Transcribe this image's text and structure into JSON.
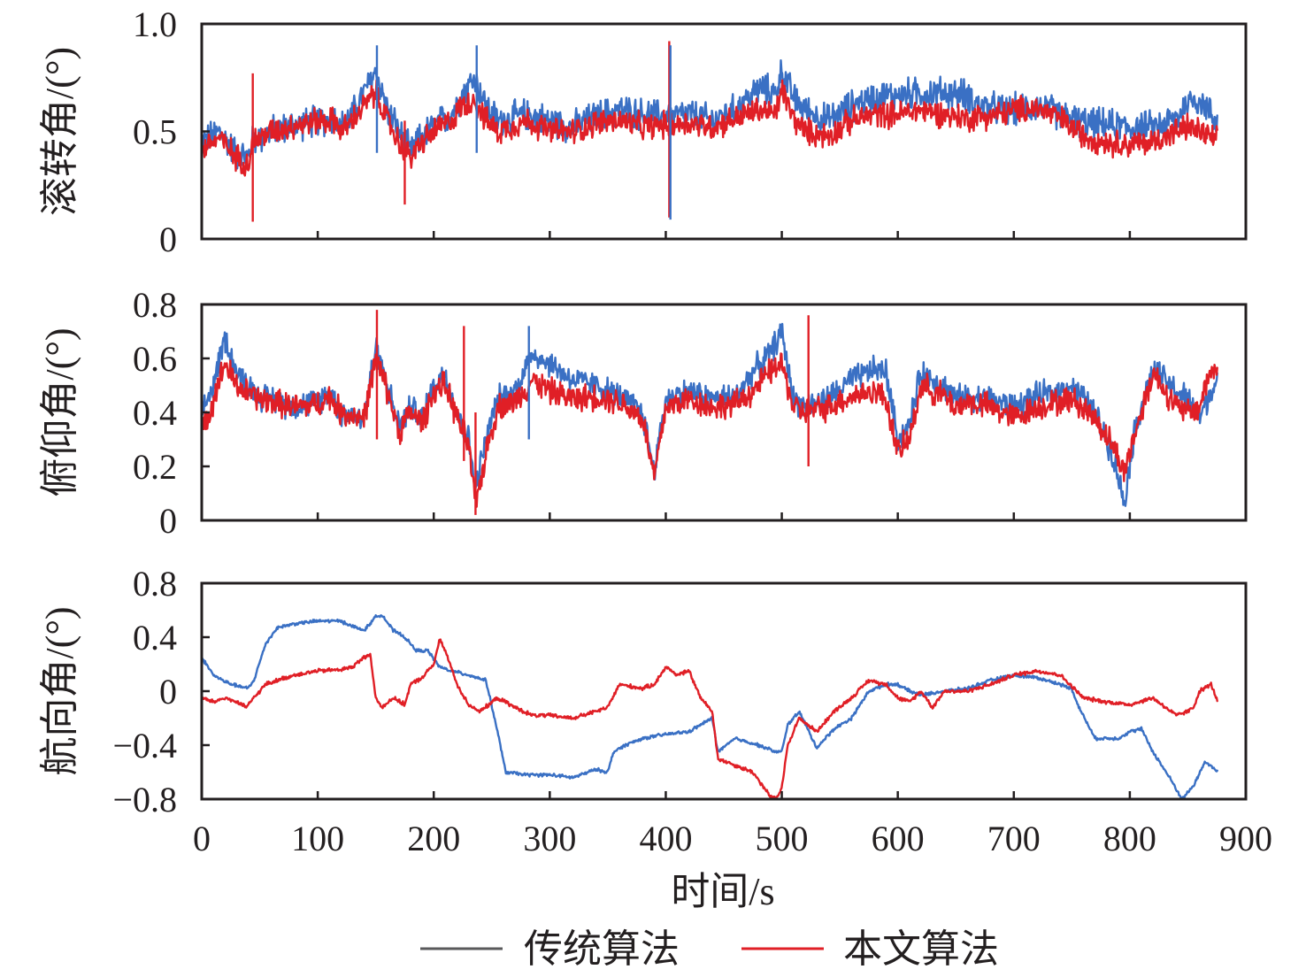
{
  "colors": {
    "traditional": "#3a70c4",
    "traditional_legend": "#59595b",
    "proposed": "#e01f26"
  },
  "legend": {
    "traditional_label": "传统算法",
    "proposed_label": "本文算法"
  },
  "chart_data": [
    {
      "type": "line",
      "ylabel": "滚转角/(°)",
      "xlim": [
        0,
        900
      ],
      "ylim": [
        0,
        1.0
      ],
      "x_ticks": [
        0,
        100,
        200,
        300,
        400,
        500,
        600,
        700,
        800,
        900
      ],
      "y_ticks": [
        "0",
        "0.5",
        "1.0"
      ],
      "y_tick_values": [
        0,
        0.5,
        1.0
      ],
      "noise": [
        0.06,
        0.05
      ],
      "series": [
        {
          "name": "传统算法",
          "x": [
            0,
            15,
            30,
            40,
            44,
            50,
            60,
            80,
            100,
            115,
            120,
            130,
            140,
            150,
            160,
            170,
            180,
            190,
            200,
            215,
            225,
            235,
            245,
            255,
            265,
            280,
            300,
            320,
            340,
            360,
            380,
            400,
            420,
            440,
            460,
            480,
            495,
            500,
            510,
            520,
            540,
            560,
            580,
            600,
            620,
            640,
            660,
            670,
            690,
            700,
            720,
            740,
            760,
            780,
            800,
            820,
            840,
            850,
            860,
            870,
            876
          ],
          "y": [
            0.45,
            0.5,
            0.4,
            0.38,
            0.46,
            0.47,
            0.5,
            0.53,
            0.55,
            0.56,
            0.52,
            0.58,
            0.68,
            0.78,
            0.6,
            0.5,
            0.4,
            0.48,
            0.52,
            0.58,
            0.68,
            0.75,
            0.62,
            0.55,
            0.56,
            0.58,
            0.55,
            0.52,
            0.57,
            0.6,
            0.58,
            0.57,
            0.58,
            0.55,
            0.6,
            0.7,
            0.68,
            0.78,
            0.66,
            0.6,
            0.55,
            0.62,
            0.66,
            0.67,
            0.68,
            0.68,
            0.67,
            0.62,
            0.6,
            0.6,
            0.62,
            0.58,
            0.54,
            0.53,
            0.52,
            0.52,
            0.56,
            0.64,
            0.65,
            0.58,
            0.55
          ]
        },
        {
          "name": "本文算法",
          "x": [
            0,
            15,
            30,
            40,
            44,
            50,
            60,
            80,
            100,
            115,
            120,
            130,
            140,
            150,
            160,
            170,
            180,
            190,
            200,
            215,
            225,
            235,
            245,
            255,
            265,
            280,
            300,
            320,
            340,
            360,
            380,
            400,
            420,
            440,
            460,
            480,
            495,
            500,
            510,
            520,
            540,
            560,
            580,
            600,
            620,
            640,
            660,
            670,
            690,
            700,
            720,
            740,
            760,
            780,
            800,
            820,
            840,
            850,
            860,
            870,
            876
          ],
          "y": [
            0.42,
            0.47,
            0.38,
            0.35,
            0.45,
            0.47,
            0.5,
            0.53,
            0.55,
            0.55,
            0.5,
            0.55,
            0.62,
            0.68,
            0.55,
            0.45,
            0.38,
            0.45,
            0.5,
            0.55,
            0.62,
            0.65,
            0.55,
            0.5,
            0.52,
            0.55,
            0.5,
            0.5,
            0.54,
            0.55,
            0.52,
            0.53,
            0.54,
            0.52,
            0.56,
            0.6,
            0.58,
            0.7,
            0.56,
            0.5,
            0.48,
            0.55,
            0.58,
            0.58,
            0.6,
            0.58,
            0.56,
            0.57,
            0.58,
            0.6,
            0.61,
            0.56,
            0.48,
            0.45,
            0.44,
            0.45,
            0.5,
            0.52,
            0.5,
            0.47,
            0.45
          ]
        }
      ],
      "spikes": [
        {
          "x": 44,
          "y": [
            0.08,
            0.77
          ],
          "series": 1
        },
        {
          "x": 403,
          "y": [
            0.1,
            0.92
          ],
          "series": 1
        },
        {
          "x": 404,
          "y": [
            0.09,
            0.9
          ],
          "series": 0
        },
        {
          "x": 151,
          "y": [
            0.4,
            0.9
          ],
          "series": 0
        },
        {
          "x": 237,
          "y": [
            0.4,
            0.9
          ],
          "series": 0
        },
        {
          "x": 175,
          "y": [
            0.16,
            0.55
          ],
          "series": 1
        }
      ]
    },
    {
      "type": "line",
      "ylabel": "俯仰角/(°)",
      "xlim": [
        0,
        900
      ],
      "ylim": [
        0,
        0.8
      ],
      "x_ticks": [
        0,
        100,
        200,
        300,
        400,
        500,
        600,
        700,
        800,
        900
      ],
      "y_ticks": [
        "0",
        "0.2",
        "0.4",
        "0.6",
        "0.8"
      ],
      "y_tick_values": [
        0,
        0.2,
        0.4,
        0.6,
        0.8
      ],
      "noise": [
        0.04,
        0.04
      ],
      "series": [
        {
          "name": "传统算法",
          "x": [
            0,
            10,
            20,
            30,
            40,
            50,
            60,
            80,
            100,
            110,
            120,
            140,
            150,
            160,
            170,
            180,
            190,
            200,
            210,
            220,
            230,
            236,
            245,
            255,
            270,
            285,
            300,
            320,
            340,
            360,
            380,
            390,
            400,
            420,
            440,
            460,
            475,
            490,
            500,
            510,
            520,
            540,
            560,
            580,
            590,
            600,
            610,
            620,
            640,
            650,
            660,
            680,
            700,
            720,
            740,
            750,
            770,
            785,
            795,
            805,
            820,
            840,
            850,
            860,
            870,
            876
          ],
          "y": [
            0.4,
            0.5,
            0.68,
            0.55,
            0.5,
            0.46,
            0.45,
            0.42,
            0.44,
            0.48,
            0.4,
            0.38,
            0.65,
            0.5,
            0.35,
            0.42,
            0.38,
            0.5,
            0.55,
            0.4,
            0.3,
            0.12,
            0.3,
            0.45,
            0.48,
            0.62,
            0.58,
            0.52,
            0.5,
            0.46,
            0.4,
            0.18,
            0.45,
            0.48,
            0.45,
            0.46,
            0.55,
            0.62,
            0.7,
            0.45,
            0.42,
            0.45,
            0.52,
            0.56,
            0.55,
            0.3,
            0.35,
            0.55,
            0.5,
            0.45,
            0.46,
            0.45,
            0.42,
            0.46,
            0.48,
            0.5,
            0.4,
            0.25,
            0.07,
            0.35,
            0.56,
            0.48,
            0.45,
            0.38,
            0.48,
            0.52
          ]
        },
        {
          "name": "本文算法",
          "x": [
            0,
            10,
            20,
            30,
            40,
            50,
            60,
            80,
            100,
            110,
            120,
            140,
            150,
            160,
            170,
            180,
            190,
            200,
            210,
            220,
            230,
            236,
            245,
            255,
            270,
            285,
            300,
            320,
            340,
            360,
            380,
            390,
            400,
            420,
            440,
            460,
            475,
            490,
            500,
            510,
            520,
            540,
            560,
            580,
            590,
            600,
            610,
            620,
            640,
            650,
            660,
            680,
            700,
            720,
            740,
            750,
            770,
            785,
            795,
            805,
            820,
            840,
            850,
            860,
            870,
            876
          ],
          "y": [
            0.32,
            0.45,
            0.58,
            0.5,
            0.47,
            0.45,
            0.44,
            0.42,
            0.43,
            0.46,
            0.4,
            0.38,
            0.6,
            0.48,
            0.33,
            0.4,
            0.36,
            0.48,
            0.5,
            0.38,
            0.28,
            0.05,
            0.25,
            0.42,
            0.44,
            0.52,
            0.48,
            0.45,
            0.46,
            0.44,
            0.38,
            0.16,
            0.42,
            0.45,
            0.42,
            0.43,
            0.48,
            0.55,
            0.58,
            0.42,
            0.4,
            0.42,
            0.46,
            0.48,
            0.45,
            0.25,
            0.3,
            0.5,
            0.46,
            0.42,
            0.44,
            0.42,
            0.38,
            0.42,
            0.44,
            0.45,
            0.38,
            0.28,
            0.18,
            0.33,
            0.55,
            0.42,
            0.4,
            0.42,
            0.56,
            0.55
          ]
        }
      ],
      "spikes": [
        {
          "x": 151,
          "y": [
            0.3,
            0.78
          ],
          "series": 1
        },
        {
          "x": 523,
          "y": [
            0.2,
            0.76
          ],
          "series": 1
        },
        {
          "x": 226,
          "y": [
            0.22,
            0.72
          ],
          "series": 1
        },
        {
          "x": 282,
          "y": [
            0.3,
            0.72
          ],
          "series": 0
        },
        {
          "x": 236,
          "y": [
            0.02,
            0.4
          ],
          "series": 1
        }
      ]
    },
    {
      "type": "line",
      "ylabel": "航向角/(°)",
      "xlim": [
        0,
        900
      ],
      "ylim": [
        -0.8,
        0.8
      ],
      "x_ticks": [
        0,
        100,
        200,
        300,
        400,
        500,
        600,
        700,
        800,
        900
      ],
      "x_tick_labels": [
        "0",
        "100",
        "200",
        "300",
        "400",
        "500",
        "600",
        "700",
        "800",
        "900"
      ],
      "xlabel": "时间/s",
      "y_ticks": [
        "−0.8",
        "−0.4",
        "0",
        "0.4",
        "0.8"
      ],
      "y_tick_values": [
        -0.8,
        -0.4,
        0,
        0.4,
        0.8
      ],
      "noise": [
        0.01,
        0.012
      ],
      "series": [
        {
          "name": "传统算法",
          "x": [
            0,
            10,
            20,
            30,
            40,
            45,
            55,
            65,
            80,
            100,
            120,
            130,
            140,
            150,
            155,
            165,
            175,
            185,
            195,
            205,
            215,
            230,
            245,
            255,
            262,
            280,
            300,
            320,
            340,
            350,
            355,
            365,
            380,
            400,
            420,
            440,
            445,
            460,
            480,
            495,
            500,
            505,
            515,
            530,
            545,
            560,
            575,
            590,
            600,
            610,
            620,
            640,
            660,
            680,
            700,
            720,
            740,
            750,
            755,
            770,
            790,
            800,
            810,
            820,
            835,
            845,
            855,
            865,
            876
          ],
          "y": [
            0.25,
            0.12,
            0.07,
            0.04,
            0.02,
            0.08,
            0.35,
            0.47,
            0.5,
            0.52,
            0.52,
            0.48,
            0.45,
            0.55,
            0.57,
            0.45,
            0.4,
            0.3,
            0.3,
            0.18,
            0.15,
            0.12,
            0.08,
            -0.3,
            -0.6,
            -0.62,
            -0.62,
            -0.64,
            -0.58,
            -0.6,
            -0.45,
            -0.4,
            -0.35,
            -0.32,
            -0.3,
            -0.2,
            -0.45,
            -0.35,
            -0.4,
            -0.45,
            -0.45,
            -0.25,
            -0.15,
            -0.42,
            -0.28,
            -0.2,
            0.0,
            0.05,
            0.05,
            0.0,
            -0.03,
            0.0,
            0.02,
            0.08,
            0.12,
            0.1,
            0.05,
            0.02,
            -0.1,
            -0.35,
            -0.35,
            -0.3,
            -0.28,
            -0.45,
            -0.65,
            -0.8,
            -0.7,
            -0.52,
            -0.6
          ]
        },
        {
          "name": "本文算法",
          "x": [
            0,
            10,
            20,
            30,
            38,
            45,
            55,
            65,
            80,
            100,
            120,
            130,
            140,
            145,
            150,
            155,
            165,
            175,
            180,
            190,
            200,
            205,
            210,
            220,
            230,
            240,
            255,
            270,
            285,
            300,
            320,
            340,
            350,
            360,
            380,
            390,
            400,
            410,
            420,
            430,
            440,
            445,
            460,
            475,
            490,
            495,
            500,
            505,
            515,
            530,
            545,
            560,
            575,
            590,
            600,
            610,
            620,
            630,
            640,
            660,
            680,
            700,
            720,
            740,
            760,
            780,
            800,
            820,
            840,
            850,
            855,
            860,
            870,
            876
          ],
          "y": [
            -0.05,
            -0.08,
            -0.05,
            -0.08,
            -0.12,
            -0.05,
            0.05,
            0.08,
            0.12,
            0.15,
            0.16,
            0.18,
            0.25,
            0.28,
            -0.05,
            -0.12,
            -0.05,
            -0.1,
            0.05,
            0.1,
            0.2,
            0.38,
            0.3,
            0.05,
            -0.1,
            -0.15,
            -0.05,
            -0.12,
            -0.18,
            -0.18,
            -0.2,
            -0.15,
            -0.12,
            0.05,
            0.02,
            0.05,
            0.18,
            0.12,
            0.15,
            -0.05,
            -0.15,
            -0.5,
            -0.55,
            -0.6,
            -0.78,
            -0.8,
            -0.72,
            -0.4,
            -0.2,
            -0.3,
            -0.15,
            -0.05,
            0.08,
            0.05,
            -0.05,
            -0.08,
            0.0,
            -0.12,
            0.0,
            0.0,
            0.05,
            0.12,
            0.15,
            0.12,
            -0.05,
            -0.08,
            -0.1,
            -0.05,
            -0.18,
            -0.15,
            -0.12,
            0.0,
            0.05,
            -0.08
          ]
        }
      ],
      "spikes": []
    }
  ]
}
